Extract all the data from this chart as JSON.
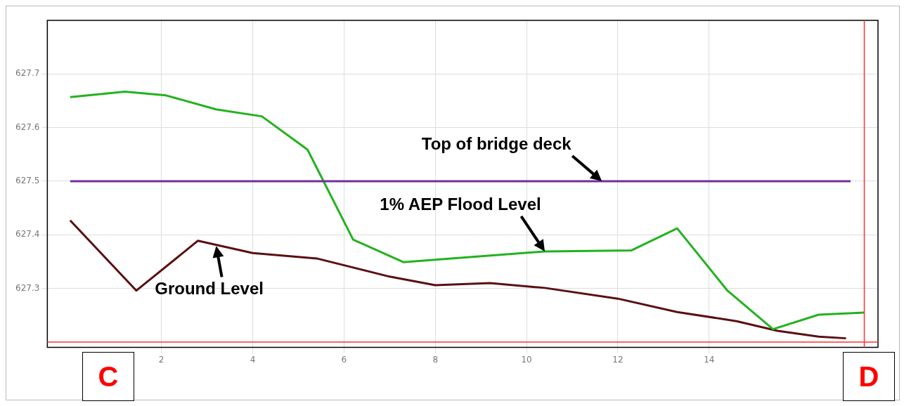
{
  "chart_data": {
    "type": "line",
    "xlim": [
      -0.5,
      17.7
    ],
    "xticks": [
      2,
      4,
      6,
      8,
      10,
      12,
      14
    ],
    "ylim": [
      627.19,
      627.8
    ],
    "yticks": [
      627.3,
      627.4,
      627.5,
      627.6,
      627.7
    ],
    "grid": true,
    "legend": false,
    "marker": "none",
    "line_style": "solid",
    "series": [
      {
        "color": "#7030a0",
        "x": [
          0,
          17.1
        ],
        "values": [
          627.5,
          627.5
        ]
      },
      {
        "color": "#22b21e",
        "x": [
          0,
          1.2,
          2.1,
          3.2,
          4.2,
          5.2,
          6.2,
          7.3,
          8.2,
          10.4,
          12.3,
          13.3,
          14.4,
          15.4,
          16.4,
          17.4
        ],
        "values": [
          627.657,
          627.667,
          627.66,
          627.634,
          627.621,
          627.559,
          627.391,
          627.349,
          627.355,
          627.369,
          627.371,
          627.412,
          627.296,
          627.224,
          627.251,
          627.255
        ]
      },
      {
        "color": "#5a0f12",
        "x": [
          0,
          1.45,
          2.8,
          4.0,
          5.4,
          7.0,
          8.0,
          9.2,
          10.4,
          12.0,
          13.3,
          14.6,
          15.5,
          16.4,
          17.0
        ],
        "values": [
          627.427,
          627.296,
          627.389,
          627.366,
          627.356,
          627.322,
          627.306,
          627.31,
          627.301,
          627.281,
          627.256,
          627.239,
          627.221,
          627.21,
          627.207
        ]
      }
    ],
    "ref_lines": [
      {
        "axis": "x",
        "value": 17.4,
        "color": "#ff3030"
      },
      {
        "axis": "y",
        "value": 627.2,
        "color": "#ff3030"
      }
    ],
    "annotations": [
      {
        "text": "Top of bridge deck",
        "x": 11.65,
        "y": 627.5
      },
      {
        "text": "1% AEP Flood Level",
        "x": 10.4,
        "y": 627.369
      },
      {
        "text": "Ground Level",
        "x": 3.2,
        "y": 627.379
      },
      "C",
      "D"
    ]
  }
}
